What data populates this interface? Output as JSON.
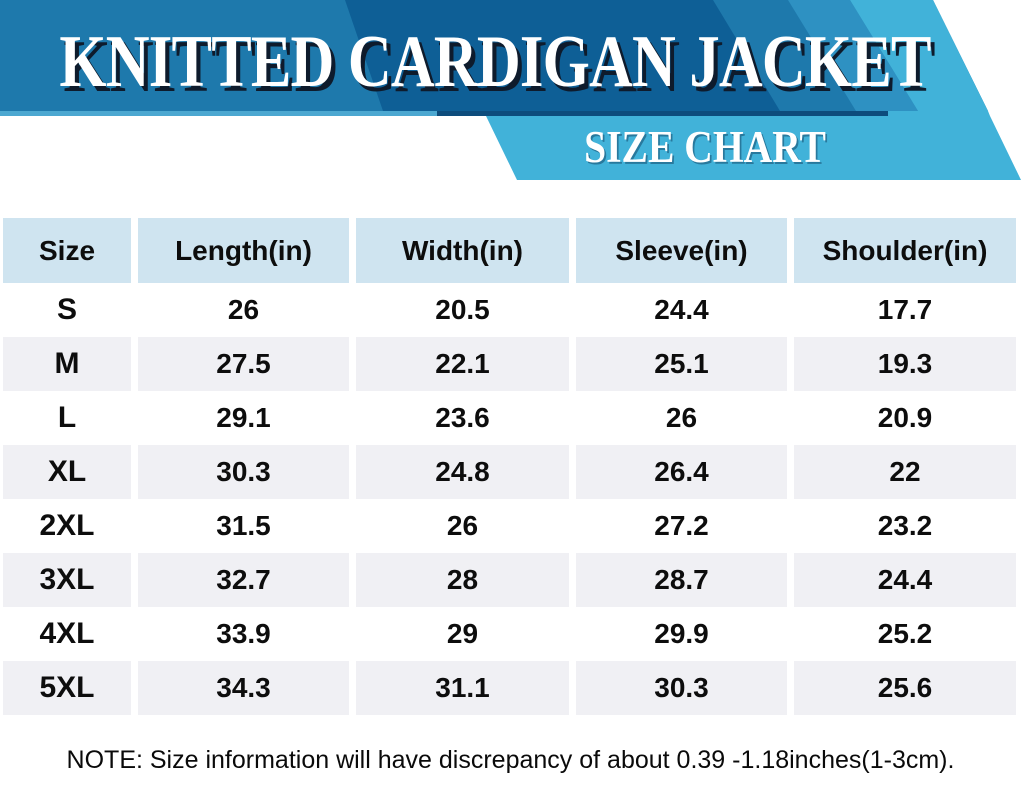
{
  "banner": {
    "title": "KNITTED CARDIGAN JACKET",
    "subtitle": "SIZE CHART",
    "colors": {
      "base_blue": "#1e79ac",
      "dark_stripe": "#0e5f96",
      "mid_stripe": "#2e91c2",
      "light_blue": "#41b2d9",
      "fold_light": "#4ca8d1",
      "fold_navy": "#0d4c7c",
      "title_shadow": "#0e1b2c"
    }
  },
  "chart_data": {
    "type": "table",
    "title": "KNITTED CARDIGAN JACKET",
    "subtitle": "SIZE CHART",
    "columns": [
      "Size",
      "Length(in)",
      "Width(in)",
      "Sleeve(in)",
      "Shoulder(in)"
    ],
    "rows": [
      [
        "S",
        "26",
        "20.5",
        "24.4",
        "17.7"
      ],
      [
        "M",
        "27.5",
        "22.1",
        "25.1",
        "19.3"
      ],
      [
        "L",
        "29.1",
        "23.6",
        "26",
        "20.9"
      ],
      [
        "XL",
        "30.3",
        "24.8",
        "26.4",
        "22"
      ],
      [
        "2XL",
        "31.5",
        "26",
        "27.2",
        "23.2"
      ],
      [
        "3XL",
        "32.7",
        "28",
        "28.7",
        "24.4"
      ],
      [
        "4XL",
        "33.9",
        "29",
        "29.9",
        "25.2"
      ],
      [
        "5XL",
        "34.3",
        "31.1",
        "30.3",
        "25.6"
      ]
    ],
    "layout": {
      "header_bg": "#cfe4f0",
      "row_alt_bg": "#f0f0f4",
      "row_bg": "#ffffff",
      "text_color": "#0d0d0d"
    }
  },
  "note": "NOTE: Size information will have discrepancy of about 0.39 -1.18inches(1-3cm)."
}
